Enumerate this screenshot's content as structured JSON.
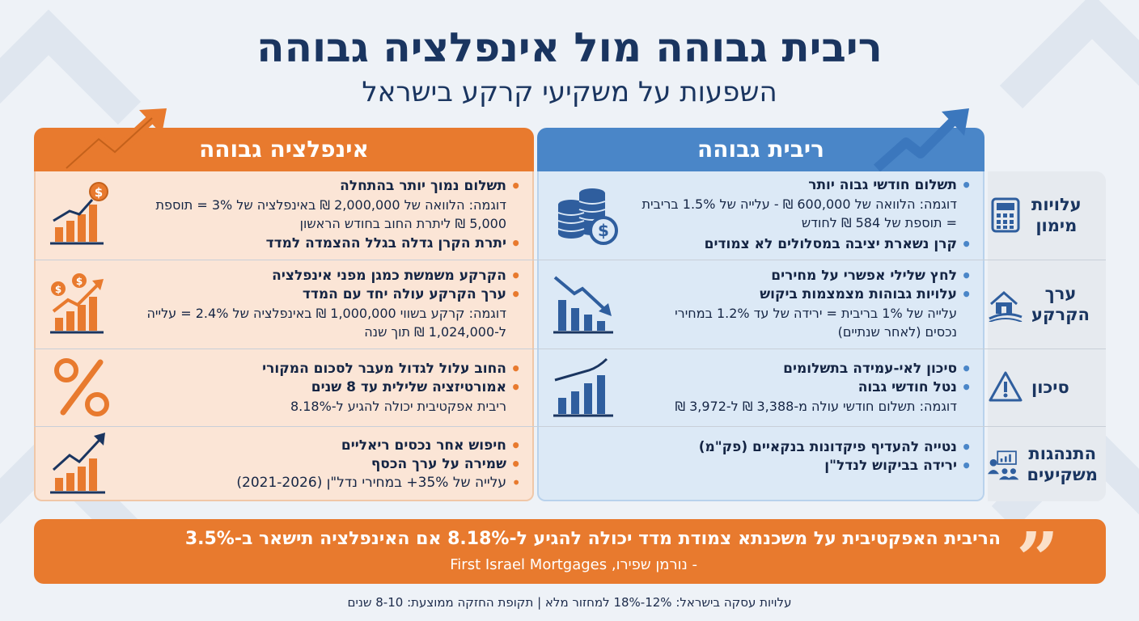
{
  "title": "ריבית גבוהה מול אינפלציה גבוהה",
  "subtitle": "השפעות על משקיעי קרקע בישראל",
  "columns": {
    "interest": "ריבית גבוהה",
    "inflation": "אינפלציה גבוהה"
  },
  "colors": {
    "blue": "#4a86c8",
    "orange": "#e87a2e",
    "navy": "#1a3560"
  },
  "rows": [
    {
      "label": "עלויות מימון",
      "label_lines": [
        "עלויות",
        "מימון"
      ],
      "icon": "calculator-icon",
      "interest_icon": "coins-dollar-icon",
      "inflation_icon": "rising-chart-dollar-icon",
      "interest": {
        "b1": "תשלום חודשי גבוה יותר",
        "b1_sub": "דוגמה: הלוואה של 600,000 ₪ - עלייה של 1.5% בריבית = תוספת של 584 ₪ לחודש",
        "b2": "קרן נשארת יציבה במסלולים לא צמודים"
      },
      "inflation": {
        "b1": "תשלום נמוך יותר בהתחלה",
        "b1_sub": "דוגמה: הלוואה של 2,000,000 ₪ באינפלציה של 3% = תוספת 5,000 ₪ ליתרת החוב בחודש הראשון",
        "b2": "יתרת הקרן גדלה בגלל ההצמדה למדד"
      }
    },
    {
      "label": "ערך הקרקע",
      "label_lines": [
        "ערך",
        "הקרקע"
      ],
      "icon": "house-land-icon",
      "interest_icon": "falling-chart-icon",
      "inflation_icon": "rising-chart-coins-icon",
      "interest": {
        "b1": "לחץ שלילי אפשרי על מחירים",
        "b2": "עלויות גבוהות מצמצמות ביקוש",
        "b2_sub": "עלייה של 1% בריבית = ירידה של עד 1.2% במחירי נכסים (לאחר שנתיים)"
      },
      "inflation": {
        "b1": "הקרקע משמשת כמגן מפני אינפלציה",
        "b2": "ערך הקרקע עולה יחד עם המדד",
        "b2_sub": "דוגמה: קרקע בשווי 1,000,000 ₪ באינפלציה של 2.4% = עלייה ל-1,024,000 ₪ תוך שנה"
      }
    },
    {
      "label": "סיכון",
      "label_lines": [
        "סיכון"
      ],
      "icon": "warning-triangle-icon",
      "interest_icon": "bar-chart-rising-icon",
      "inflation_icon": "percent-icon",
      "interest": {
        "b1": "סיכון לאי-עמידה בתשלומים",
        "b2": "נטל חודשי גבוה",
        "b2_sub": "דוגמה: תשלום חודשי עולה מ-3,388 ₪ ל-3,972 ₪"
      },
      "inflation": {
        "b1": "החוב עלול לגדול מעבר לסכום המקורי",
        "b2": "אמורטיזציה שלילית עד 8 שנים",
        "b2_sub": "ריבית אפקטיבית יכולה להגיע ל-8.18%"
      }
    },
    {
      "label": "התנהגות משקיעים",
      "label_lines": [
        "התנהגות",
        "משקיעים"
      ],
      "icon": "investors-icon",
      "inflation_icon": "growth-arrow-chart-icon",
      "interest": {
        "b1": "נטייה להעדיף פיקדונות בנקאיים (פק\"מ)",
        "b2": "ירידה בביקוש לנדל\"ן"
      },
      "inflation": {
        "b1": "חיפוש אחר נכסים ריאליים",
        "b2": "שמירה על ערך הכסף",
        "b3": "עלייה של 35%+ במחירי נדל\"ן (2021-2026)"
      }
    }
  ],
  "quote": {
    "text": "הריבית האפקטיבית על משכנתא צמודת מדד יכולה להגיע ל-8.18% אם האינפלציה תישאר ב-3.5%",
    "author": "- נורמן שפירו, First Israel Mortgages",
    "icon": "quote-icon"
  },
  "footer": "עלויות עסקה בישראל: 12%-18% למחזור מלא | תקופת החזקה ממוצעת: 8-10 שנים"
}
